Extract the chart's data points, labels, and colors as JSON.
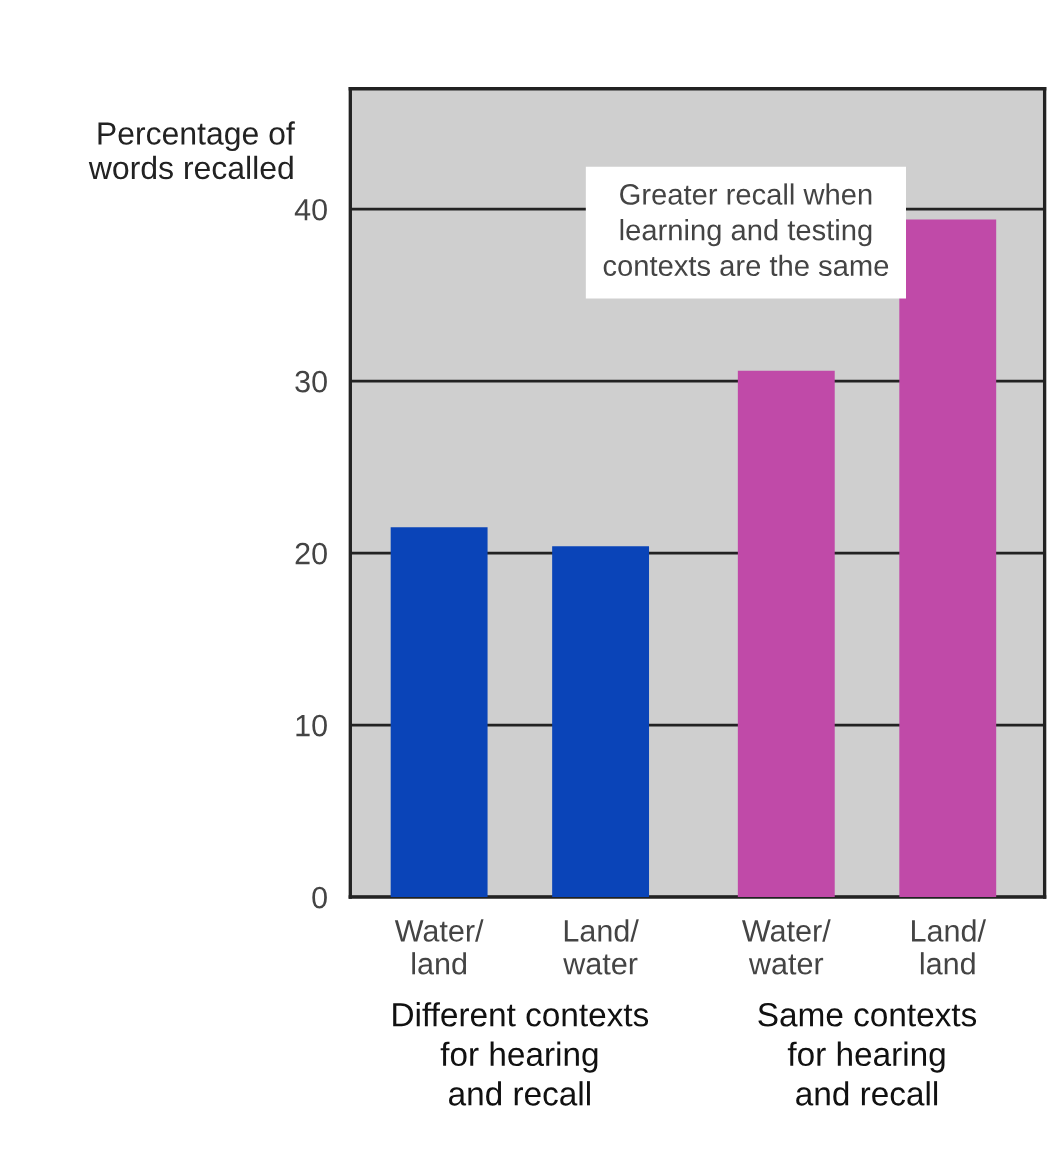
{
  "chart_data": {
    "type": "bar",
    "ylabel": "Percentage of\nwords recalled",
    "categories": [
      "Water/\nland",
      "Land/\nwater",
      "Water/\nwater",
      "Land/\nland"
    ],
    "values": [
      21.5,
      20.4,
      30.6,
      39.4
    ],
    "colors": [
      "#0a44b8",
      "#0a44b8",
      "#c04aa8",
      "#c04aa8"
    ],
    "ylim": [
      0,
      47
    ],
    "yticks": [
      0,
      10,
      20,
      30,
      40
    ],
    "grid": "y",
    "annotations": [
      {
        "text": "Greater recall when\nlearning and testing\ncontexts are the same"
      },
      "Different contexts\nfor hearing\nand recall",
      "Same contexts\nfor hearing\nand recall"
    ]
  }
}
